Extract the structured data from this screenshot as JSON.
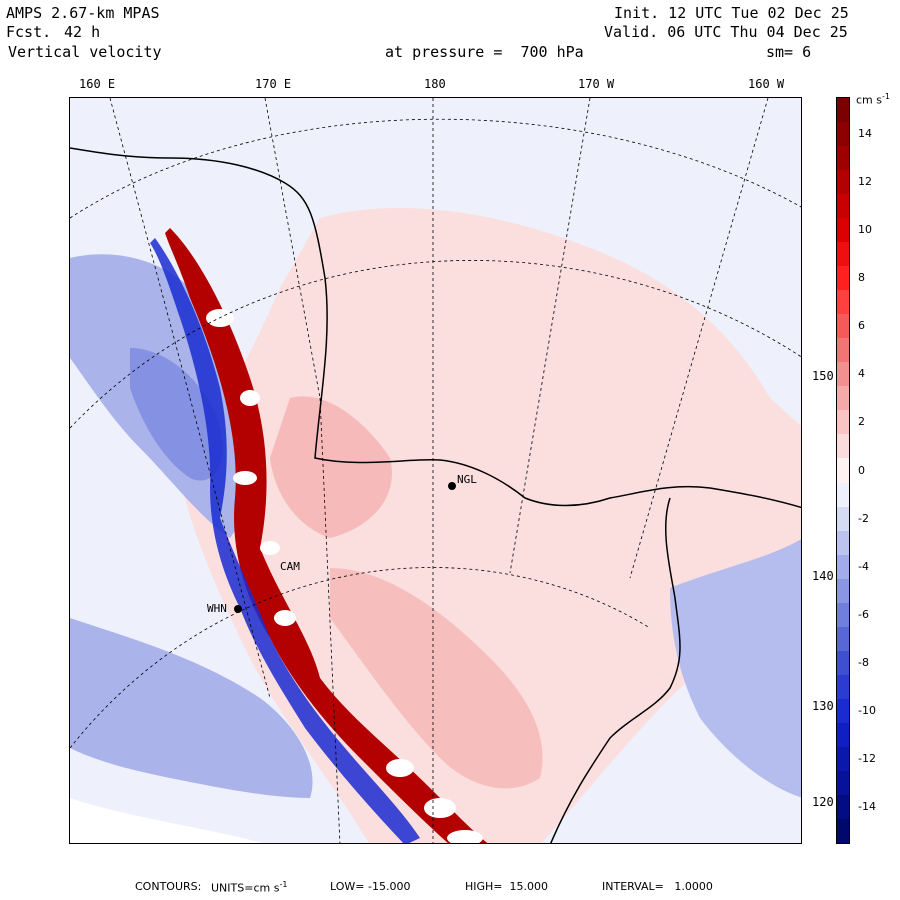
{
  "header": {
    "model": "AMPS 2.67-km MPAS",
    "forecast_label": "Fcst.",
    "forecast_hours": "42 h",
    "field": "Vertical velocity",
    "init": "Init. 12 UTC Tue 02 Dec 25",
    "valid": "Valid. 06 UTC Thu 04 Dec 25",
    "level": "at pressure =  700 hPa",
    "smoothing": "sm= 6"
  },
  "map": {
    "lon_labels": [
      "160 E",
      "170 E",
      "180",
      "170 W",
      "160 W"
    ],
    "lat_labels": [
      "150 W",
      "140 W",
      "130 W",
      "120 W"
    ],
    "stations": [
      {
        "code": "NGL"
      },
      {
        "code": "WHN"
      },
      {
        "code": "CAM"
      }
    ],
    "colors": {
      "background_light_blue": "#eef0fb",
      "light_red": "#fbd6d6",
      "mid_red": "#f08080",
      "dark_red": "#9b0000",
      "light_blue": "#c6cdf1",
      "mid_blue": "#6a78d8",
      "dark_blue": "#1a1aa0"
    }
  },
  "colorbar": {
    "unit": "cm s",
    "unit_exp": "-1",
    "labels": [
      "14",
      "12",
      "10",
      "8",
      "6",
      "4",
      "2",
      "0",
      "-2",
      "-4",
      "-6",
      "-8",
      "-10",
      "-12",
      "-14"
    ],
    "levels": [
      {
        "v": 15,
        "color": "#7b0000"
      },
      {
        "v": 14,
        "color": "#8c0000"
      },
      {
        "v": 13,
        "color": "#9e0000"
      },
      {
        "v": 12,
        "color": "#b30000"
      },
      {
        "v": 11,
        "color": "#c80000"
      },
      {
        "v": 10,
        "color": "#dc0000"
      },
      {
        "v": 9,
        "color": "#ee1010"
      },
      {
        "v": 8,
        "color": "#ff2020"
      },
      {
        "v": 7,
        "color": "#ff4040"
      },
      {
        "v": 6,
        "color": "#f55a5a"
      },
      {
        "v": 5,
        "color": "#f27575"
      },
      {
        "v": 4,
        "color": "#f29090"
      },
      {
        "v": 3,
        "color": "#f5aaaa"
      },
      {
        "v": 2,
        "color": "#f8c4c4"
      },
      {
        "v": 1,
        "color": "#fbdcdc"
      },
      {
        "v": 0,
        "color": "#fff2f2"
      },
      {
        "v": -1,
        "color": "#eef0fb"
      },
      {
        "v": -2,
        "color": "#d6dbf4"
      },
      {
        "v": -3,
        "color": "#bcc3ee"
      },
      {
        "v": -4,
        "color": "#a3acea"
      },
      {
        "v": -5,
        "color": "#8a95e4"
      },
      {
        "v": -6,
        "color": "#707edd"
      },
      {
        "v": -7,
        "color": "#5767d6"
      },
      {
        "v": -8,
        "color": "#3e50d0"
      },
      {
        "v": -9,
        "color": "#2a3dd0"
      },
      {
        "v": -10,
        "color": "#1a2cd0"
      },
      {
        "v": -11,
        "color": "#1020c0"
      },
      {
        "v": -12,
        "color": "#0a18ac"
      },
      {
        "v": -13,
        "color": "#061298"
      },
      {
        "v": -14,
        "color": "#030c82"
      },
      {
        "v": -15,
        "color": "#00086c"
      }
    ]
  },
  "footer": {
    "contours": "CONTOURS:",
    "units_prefix": "UNITS=cm s",
    "units_exp": "-1",
    "low": "LOW= -15.000",
    "high": "HIGH=  15.000",
    "interval": "INTERVAL=   1.0000"
  }
}
